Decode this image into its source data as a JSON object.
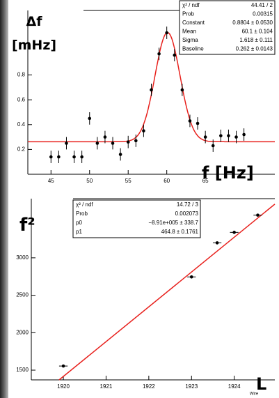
{
  "chart_data": [
    {
      "type": "scatter",
      "x": [
        45,
        46,
        47,
        48,
        49,
        50,
        51,
        52,
        53,
        54,
        55,
        56,
        57,
        58,
        59,
        60,
        61,
        62,
        63,
        64,
        65,
        66,
        67,
        68,
        69,
        70
      ],
      "values": [
        0.14,
        0.14,
        0.25,
        0.14,
        0.14,
        0.45,
        0.25,
        0.3,
        0.25,
        0.16,
        0.26,
        0.27,
        0.35,
        0.68,
        0.97,
        1.14,
        0.96,
        0.68,
        0.43,
        0.41,
        0.3,
        0.23,
        0.31,
        0.31,
        0.3,
        0.32
      ],
      "errors": [
        0.05,
        0.05,
        0.05,
        0.05,
        0.05,
        0.05,
        0.05,
        0.05,
        0.05,
        0.05,
        0.05,
        0.05,
        0.05,
        0.05,
        0.05,
        0.05,
        0.05,
        0.05,
        0.05,
        0.05,
        0.05,
        0.05,
        0.05,
        0.05,
        0.05,
        0.05
      ],
      "color": "#000000",
      "fit": {
        "constant": 0.8804,
        "mean": 60.1,
        "sigma": 1.618,
        "baseline": 0.262,
        "color": "#e8211d"
      },
      "xlim": [
        42,
        74
      ],
      "ylim": [
        0,
        1.32
      ],
      "xticks": [
        45,
        50,
        55,
        60,
        65
      ],
      "yticks": [
        0.2,
        0.4,
        0.6,
        0.8
      ],
      "x_label": "f [Hz]",
      "y_label": "Δf [mHz]",
      "stats": [
        [
          "χ² / ndf",
          "44.41 / 2"
        ],
        [
          "Prob",
          "0.00315"
        ],
        [
          "Constant",
          "0.8804 ± 0.0530"
        ],
        [
          "Mean",
          "60.1 ± 0.104"
        ],
        [
          "Sigma",
          "1.618 ± 0.111"
        ],
        [
          "Baseline",
          "0.262 ± 0.0143"
        ]
      ]
    },
    {
      "type": "scatter",
      "x": [
        1920,
        1923,
        1923.6,
        1924,
        1924.55
      ],
      "values": [
        1555,
        2745,
        3200,
        3340,
        3570
      ],
      "xerrors": [
        0.1,
        0.1,
        0.1,
        0.1,
        0.1
      ],
      "color": "#000000",
      "fit": {
        "p0": -891000,
        "p1": 464.8,
        "color": "#e8211d"
      },
      "xlim": [
        1919.25,
        1924.95
      ],
      "ylim": [
        1370,
        3790
      ],
      "xticks": [
        1920,
        1921,
        1922,
        1923,
        1924
      ],
      "yticks": [
        1500,
        2000,
        2500,
        3000
      ],
      "x_label": "L",
      "y_label": "f²",
      "axis_title": "Wire",
      "stats": [
        [
          "χ² / ndf",
          "14.72 / 3"
        ],
        [
          "Prob",
          "0.002073"
        ],
        [
          "p0",
          "−8.91e+005 ± 338.7"
        ],
        [
          "p1",
          "464.8 ± 0.1761"
        ]
      ]
    }
  ]
}
